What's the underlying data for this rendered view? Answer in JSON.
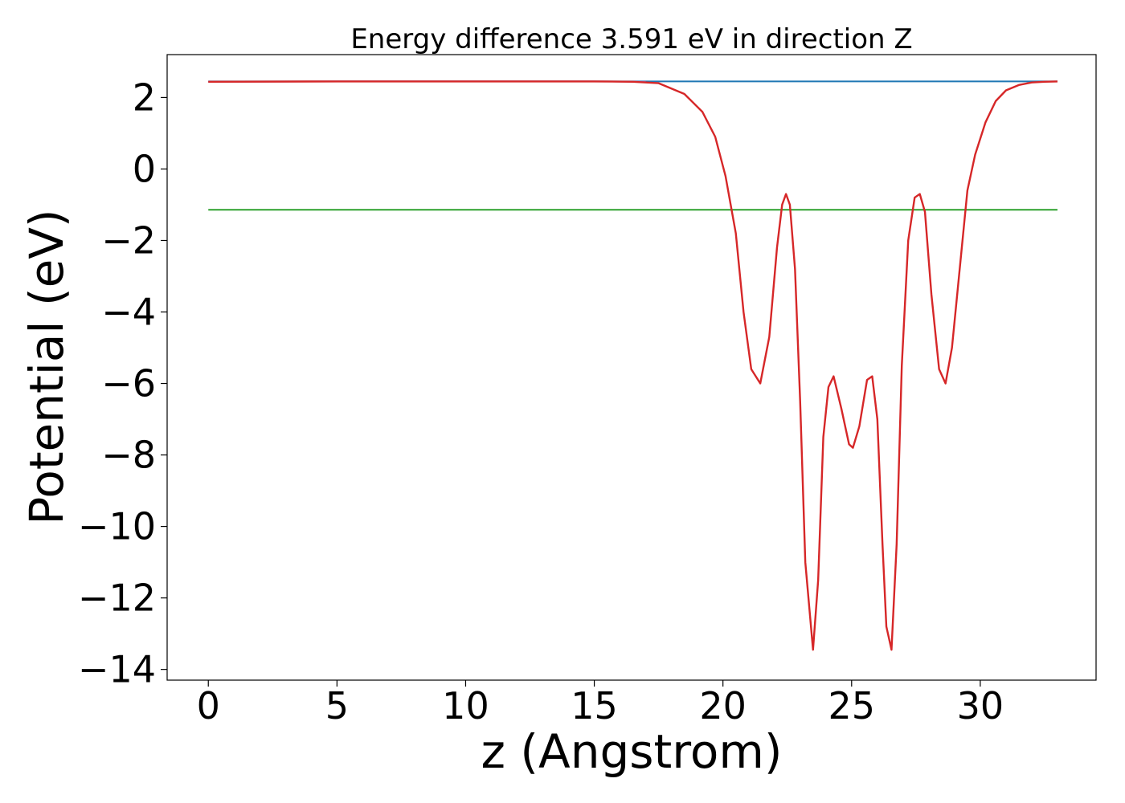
{
  "chart_data": {
    "type": "line",
    "title": "Energy difference 3.591 eV in direction Z",
    "xlabel": "z (Angstrom)",
    "ylabel": "Potential (eV)",
    "xlim": [
      -1.6,
      34.5
    ],
    "ylim": [
      -14.3,
      3.2
    ],
    "xticks": [
      0,
      5,
      10,
      15,
      20,
      25,
      30
    ],
    "yticks": [
      2,
      0,
      -2,
      -4,
      -6,
      -8,
      -10,
      -12,
      -14
    ],
    "grid": false,
    "series": [
      {
        "color": "#1f77b4",
        "x": [
          0,
          33
        ],
        "y": [
          2.45,
          2.45
        ]
      },
      {
        "color": "#2ca02c",
        "x": [
          0,
          33
        ],
        "y": [
          -1.14,
          -1.14
        ]
      },
      {
        "color": "#9467bd",
        "x": [
          0,
          5,
          10,
          15,
          17
        ],
        "y": [
          2.44,
          2.45,
          2.45,
          2.45,
          2.44
        ]
      },
      {
        "color": "#d62728",
        "x": [
          0,
          5,
          10,
          15,
          16.5,
          17.5,
          18.5,
          19.2,
          19.7,
          20.1,
          20.5,
          20.8,
          21.1,
          21.45,
          21.8,
          22.1,
          22.3,
          22.45,
          22.6,
          22.8,
          23.0,
          23.2,
          23.5,
          23.7,
          23.9,
          24.1,
          24.3,
          24.6,
          24.9,
          25.05,
          25.3,
          25.6,
          25.8,
          26.0,
          26.2,
          26.35,
          26.55,
          26.75,
          26.95,
          27.2,
          27.45,
          27.65,
          27.85,
          28.1,
          28.4,
          28.65,
          28.9,
          29.2,
          29.5,
          29.8,
          30.2,
          30.6,
          31.0,
          31.5,
          32.0,
          32.5,
          33.0
        ],
        "y": [
          2.44,
          2.45,
          2.45,
          2.45,
          2.44,
          2.4,
          2.1,
          1.6,
          0.9,
          -0.2,
          -1.8,
          -4.0,
          -5.6,
          -6.0,
          -4.7,
          -2.2,
          -1.0,
          -0.7,
          -1.0,
          -2.8,
          -6.5,
          -11.0,
          -13.45,
          -11.5,
          -7.5,
          -6.1,
          -5.8,
          -6.7,
          -7.7,
          -7.8,
          -7.2,
          -5.9,
          -5.8,
          -7.0,
          -10.5,
          -12.8,
          -13.45,
          -10.5,
          -5.5,
          -2.0,
          -0.8,
          -0.7,
          -1.2,
          -3.5,
          -5.6,
          -6.0,
          -5.0,
          -2.8,
          -0.6,
          0.4,
          1.3,
          1.9,
          2.2,
          2.35,
          2.42,
          2.44,
          2.45
        ]
      }
    ]
  }
}
